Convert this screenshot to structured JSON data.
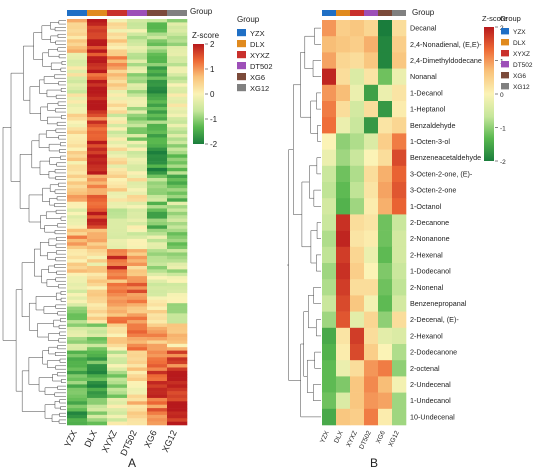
{
  "group_colors": {
    "YZX": "#1f6fc5",
    "DLX": "#e08a1e",
    "XYXZ": "#c9302c",
    "DT502": "#9d4fb8",
    "XG6": "#7b4a3a",
    "XG12": "#808080"
  },
  "color_scale": [
    "#1a7d3c",
    "#59b84f",
    "#c5e69a",
    "#fbf3b6",
    "#f9c27a",
    "#ee6a36",
    "#b7191c"
  ],
  "chart_data": [
    {
      "type": "heatmap",
      "panel_label": "A",
      "group_bar_label": "Group",
      "columns": [
        "YZX",
        "DLX",
        "XYXZ",
        "DT502",
        "XG6",
        "XG12"
      ],
      "legend": {
        "title": "Z-score",
        "ticks": [
          2,
          1,
          0,
          -1,
          -2
        ],
        "range": [
          -2,
          2
        ],
        "group_title": "Group",
        "groups": [
          "YZX",
          "DLX",
          "XYXZ",
          "DT502",
          "XG6",
          "XG12"
        ]
      },
      "row_count": 120,
      "row_labels_shown": false,
      "blocks": [
        {
          "rows": 10,
          "values": [
            0.5,
            1.9,
            0.3,
            -0.4,
            -1.0,
            -0.7
          ]
        },
        {
          "rows": 8,
          "values": [
            0.0,
            1.6,
            0.8,
            -0.6,
            -1.4,
            -0.4
          ]
        },
        {
          "rows": 10,
          "values": [
            -0.2,
            1.9,
            0.2,
            -0.5,
            -1.6,
            -0.2
          ]
        },
        {
          "rows": 8,
          "values": [
            0.2,
            1.4,
            -0.2,
            -0.8,
            -1.2,
            -0.5
          ]
        },
        {
          "rows": 10,
          "values": [
            0.3,
            1.8,
            0.1,
            -0.3,
            -1.6,
            -1.0
          ]
        },
        {
          "rows": 8,
          "values": [
            0.6,
            1.2,
            0.2,
            0.0,
            -0.9,
            -1.3
          ]
        },
        {
          "rows": 8,
          "values": [
            0.0,
            1.7,
            -0.3,
            -0.2,
            -1.2,
            -0.6
          ]
        },
        {
          "rows": 6,
          "values": [
            0.8,
            0.9,
            -0.6,
            -0.2,
            -0.6,
            -1.0
          ]
        },
        {
          "rows": 8,
          "values": [
            0.3,
            0.2,
            1.5,
            0.6,
            -0.8,
            -0.6
          ]
        },
        {
          "rows": 8,
          "values": [
            -0.3,
            0.2,
            0.9,
            1.2,
            -0.3,
            -0.2
          ]
        },
        {
          "rows": 6,
          "values": [
            -0.8,
            0.5,
            1.0,
            0.9,
            0.4,
            -0.6
          ]
        },
        {
          "rows": 8,
          "values": [
            -0.6,
            -0.8,
            0.4,
            1.1,
            0.8,
            0.4
          ]
        },
        {
          "rows": 6,
          "values": [
            -1.1,
            -1.4,
            -0.4,
            0.6,
            1.2,
            1.4
          ]
        },
        {
          "rows": 8,
          "values": [
            -1.3,
            -1.6,
            -0.8,
            0.2,
            1.6,
            1.8
          ]
        },
        {
          "rows": 8,
          "values": [
            -1.5,
            -0.9,
            -0.3,
            0.5,
            1.2,
            1.9
          ]
        }
      ]
    },
    {
      "type": "heatmap",
      "panel_label": "B",
      "group_bar_label": "Group",
      "columns": [
        "YZX",
        "DLX",
        "XYXZ",
        "DT502",
        "XG6",
        "XG12"
      ],
      "legend": {
        "title": "Z-score",
        "ticks": [
          2,
          1,
          0,
          -1,
          -2
        ],
        "range": [
          -2,
          2
        ],
        "group_title": "Group",
        "groups": [
          "YZX",
          "DLX",
          "XYXZ",
          "DT502",
          "XG6",
          "XG12"
        ]
      },
      "rows": [
        {
          "label": "Decanal",
          "values": [
            1.0,
            0.5,
            0.6,
            0.4,
            -2.0,
            0.3
          ]
        },
        {
          "label": "2,4-Nonadienal, (E,E)-",
          "values": [
            0.7,
            0.6,
            0.5,
            0.8,
            -1.9,
            0.5
          ]
        },
        {
          "label": "2,4-Dimethyldodecane",
          "values": [
            0.9,
            0.4,
            0.3,
            0.6,
            -1.9,
            0.6
          ]
        },
        {
          "label": "Nonanal",
          "values": [
            1.9,
            0.3,
            -0.4,
            0.2,
            -1.2,
            -0.2
          ]
        },
        {
          "label": "1-Decanol",
          "values": [
            1.0,
            0.7,
            -0.2,
            -1.6,
            -0.2,
            0.2
          ]
        },
        {
          "label": "1-Heptanol",
          "values": [
            1.2,
            0.3,
            -0.5,
            0.3,
            -1.7,
            0.1
          ]
        },
        {
          "label": "Benzaldehyde",
          "values": [
            1.3,
            -0.2,
            -0.6,
            -1.7,
            0.2,
            0.4
          ]
        },
        {
          "label": "1-Octen-3-ol",
          "values": [
            0.0,
            -1.0,
            -0.8,
            -0.4,
            0.5,
            1.2
          ]
        },
        {
          "label": "Benzeneacetaldehyde",
          "values": [
            -0.2,
            -0.9,
            -0.6,
            0.0,
            0.3,
            1.6
          ]
        },
        {
          "label": "3-Octen-2-one, (E)-",
          "values": [
            -0.6,
            -1.2,
            -0.8,
            0.3,
            0.8,
            1.4
          ]
        },
        {
          "label": "3-Octen-2-one",
          "values": [
            -0.7,
            -1.3,
            -0.7,
            0.2,
            0.9,
            1.5
          ]
        },
        {
          "label": "1-Octanol",
          "values": [
            -0.5,
            -1.4,
            -0.9,
            0.1,
            0.8,
            1.4
          ]
        },
        {
          "label": "2-Decanone",
          "values": [
            -0.6,
            1.8,
            0.3,
            0.2,
            -1.2,
            -0.6
          ]
        },
        {
          "label": "2-Nonanone",
          "values": [
            -0.8,
            1.9,
            0.2,
            0.1,
            -1.2,
            -0.5
          ]
        },
        {
          "label": "2-Hexenal",
          "values": [
            -0.7,
            1.7,
            0.4,
            -0.2,
            -1.3,
            -0.5
          ]
        },
        {
          "label": "1-Dodecanol",
          "values": [
            -0.9,
            1.8,
            0.5,
            0.0,
            -1.1,
            -0.6
          ]
        },
        {
          "label": "2-Nonenal",
          "values": [
            -0.8,
            1.7,
            0.3,
            0.3,
            -1.2,
            -0.7
          ]
        },
        {
          "label": "Benzenepropanal",
          "values": [
            -0.6,
            1.6,
            0.6,
            -0.1,
            -1.3,
            -0.5
          ]
        },
        {
          "label": "2-Decenal, (E)-",
          "values": [
            -0.9,
            1.5,
            -0.3,
            0.4,
            -1.0,
            0.3
          ]
        },
        {
          "label": "2-Hexanol",
          "values": [
            -1.5,
            0.2,
            1.7,
            0.3,
            -0.3,
            -0.4
          ]
        },
        {
          "label": "2-Dodecanone",
          "values": [
            -1.4,
            0.1,
            1.6,
            0.5,
            0.0,
            -0.8
          ]
        },
        {
          "label": "2-octenal",
          "values": [
            -1.3,
            -0.2,
            0.3,
            1.0,
            1.2,
            -1.0
          ]
        },
        {
          "label": "2-Undecenal",
          "values": [
            -1.3,
            -1.1,
            0.6,
            1.1,
            0.7,
            -0.1
          ]
        },
        {
          "label": "1-Undecanol",
          "values": [
            -1.2,
            -0.4,
            0.6,
            1.0,
            0.9,
            -0.9
          ]
        },
        {
          "label": "10-Undecenal",
          "values": [
            -1.5,
            0.6,
            0.5,
            1.2,
            0.1,
            -0.9
          ]
        }
      ]
    }
  ]
}
